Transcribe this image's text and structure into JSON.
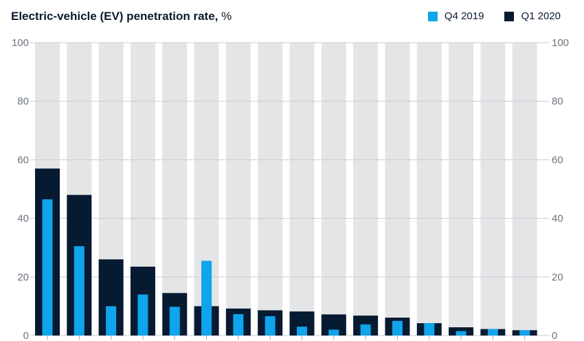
{
  "header": {
    "title_bold": "Electric-vehicle (EV) penetration rate,",
    "title_unit": "%"
  },
  "legend": [
    {
      "label": "Q4 2019",
      "color": "#0fa4ec"
    },
    {
      "label": "Q1 2020",
      "color": "#061a31"
    }
  ],
  "colors": {
    "background_bar": "#e4e5e7",
    "grid": "#c9cdd2",
    "tick_text": "#6b7480"
  },
  "chart_data": {
    "type": "bar",
    "title": "Electric-vehicle (EV) penetration rate, %",
    "xlabel": "",
    "ylabel": "",
    "ylim": [
      0,
      100
    ],
    "yticks": [
      0,
      20,
      40,
      60,
      80,
      100
    ],
    "yticks_labels": [
      "0",
      "20",
      "40",
      "60",
      "80",
      "100"
    ],
    "grid": true,
    "legend_position": "top-right",
    "categories": [
      "",
      "",
      "",
      "",
      "",
      "",
      "",
      "",
      "",
      "",
      "",
      "",
      "",
      "",
      "",
      ""
    ],
    "background_value": 100,
    "series": [
      {
        "name": "Q1 2020",
        "color": "#061a31",
        "values": [
          57,
          48,
          26,
          23.5,
          14.5,
          10,
          9.2,
          8.6,
          8.2,
          7.2,
          6.8,
          6.1,
          4.2,
          2.8,
          2.2,
          1.8
        ]
      },
      {
        "name": "Q4 2019",
        "color": "#0fa4ec",
        "values": [
          46.5,
          30.5,
          10,
          14,
          9.8,
          25.5,
          7.3,
          6.6,
          3,
          2,
          3.8,
          5,
          4.2,
          1.5,
          2.2,
          1.8
        ]
      }
    ]
  }
}
